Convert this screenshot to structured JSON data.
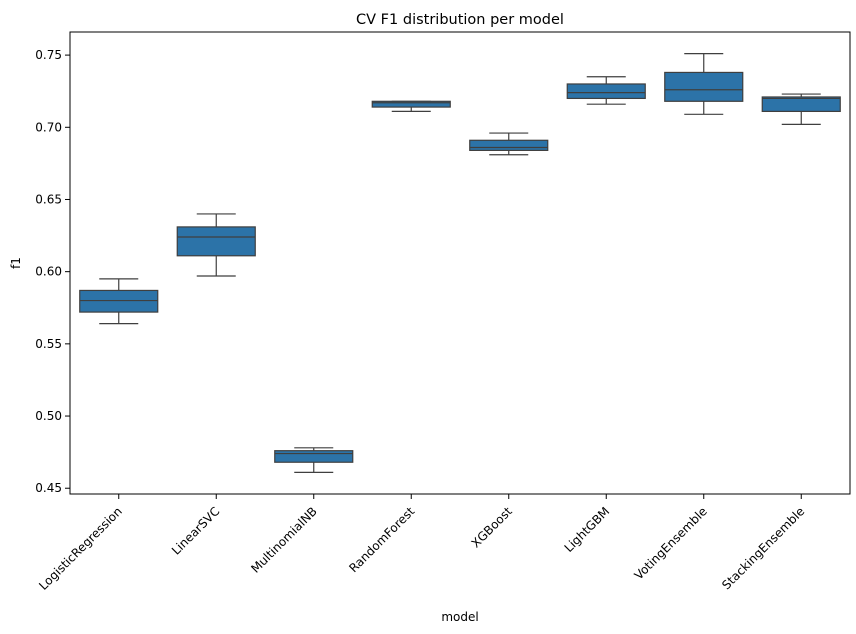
{
  "chart_data": {
    "type": "box",
    "title": "CV F1 distribution per model",
    "xlabel": "model",
    "ylabel": "f1",
    "ylim": [
      0.446,
      0.766
    ],
    "yticks": [
      0.45,
      0.5,
      0.55,
      0.6,
      0.65,
      0.7,
      0.75
    ],
    "ytick_labels": [
      "0.45",
      "0.50",
      "0.55",
      "0.60",
      "0.65",
      "0.70",
      "0.75"
    ],
    "xtick_rotation": 45,
    "grid": false,
    "box_color": "#2c73a8",
    "line_color": "#3f3f3f",
    "categories": [
      "LogisticRegression",
      "LinearSVC",
      "MultinomialNB",
      "RandomForest",
      "XGBoost",
      "LightGBM",
      "VotingEnsemble",
      "StackingEnsemble"
    ],
    "boxes": [
      {
        "model": "LogisticRegression",
        "whisker_low": 0.564,
        "q1": 0.572,
        "median": 0.58,
        "q3": 0.587,
        "whisker_high": 0.595
      },
      {
        "model": "LinearSVC",
        "whisker_low": 0.597,
        "q1": 0.611,
        "median": 0.624,
        "q3": 0.631,
        "whisker_high": 0.64
      },
      {
        "model": "MultinomialNB",
        "whisker_low": 0.461,
        "q1": 0.468,
        "median": 0.474,
        "q3": 0.476,
        "whisker_high": 0.478
      },
      {
        "model": "RandomForest",
        "whisker_low": 0.711,
        "q1": 0.714,
        "median": 0.717,
        "q3": 0.718,
        "whisker_high": 0.718
      },
      {
        "model": "XGBoost",
        "whisker_low": 0.681,
        "q1": 0.684,
        "median": 0.686,
        "q3": 0.691,
        "whisker_high": 0.696
      },
      {
        "model": "LightGBM",
        "whisker_low": 0.716,
        "q1": 0.72,
        "median": 0.724,
        "q3": 0.73,
        "whisker_high": 0.735
      },
      {
        "model": "VotingEnsemble",
        "whisker_low": 0.709,
        "q1": 0.718,
        "median": 0.726,
        "q3": 0.738,
        "whisker_high": 0.751
      },
      {
        "model": "StackingEnsemble",
        "whisker_low": 0.702,
        "q1": 0.711,
        "median": 0.72,
        "q3": 0.721,
        "whisker_high": 0.723
      }
    ]
  }
}
